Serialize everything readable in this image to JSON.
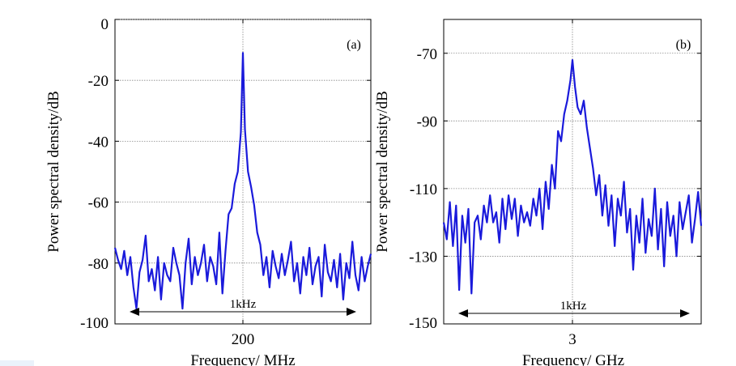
{
  "chart_data": [
    {
      "type": "line",
      "panel_label": "(a)",
      "xlabel": "Frequency/ MHz",
      "ylabel": "Power spectral density/dB",
      "xtick_labels": [
        "200"
      ],
      "ylim": [
        -100,
        0
      ],
      "yticks": [
        0,
        -20,
        -40,
        -60,
        -80,
        -100
      ],
      "grid": true,
      "span_annotation": "1kHz",
      "color": "#1a1adb",
      "series": [
        {
          "x": [
            0.0,
            0.012,
            0.024,
            0.036,
            0.048,
            0.06,
            0.072,
            0.084,
            0.096,
            0.108,
            0.12,
            0.132,
            0.144,
            0.156,
            0.168,
            0.18,
            0.192,
            0.204,
            0.216,
            0.228,
            0.24,
            0.252,
            0.264,
            0.276,
            0.288,
            0.3,
            0.312,
            0.324,
            0.336,
            0.348,
            0.36,
            0.372,
            0.384,
            0.396,
            0.408,
            0.42,
            0.432,
            0.444,
            0.456,
            0.468,
            0.48,
            0.492,
            0.5,
            0.508,
            0.52,
            0.532,
            0.544,
            0.556,
            0.568,
            0.58,
            0.592,
            0.604,
            0.616,
            0.628,
            0.64,
            0.652,
            0.664,
            0.676,
            0.688,
            0.7,
            0.712,
            0.724,
            0.736,
            0.748,
            0.76,
            0.772,
            0.784,
            0.796,
            0.808,
            0.82,
            0.832,
            0.844,
            0.856,
            0.868,
            0.88,
            0.892,
            0.904,
            0.916,
            0.928,
            0.94,
            0.952,
            0.964,
            0.976,
            0.988,
            1.0
          ],
          "y": [
            -75,
            -79,
            -82,
            -76,
            -84,
            -78,
            -88,
            -95,
            -83,
            -79,
            -71,
            -86,
            -82,
            -89,
            -78,
            -92,
            -80,
            -84,
            -86,
            -75,
            -80,
            -84,
            -95,
            -80,
            -72,
            -87,
            -78,
            -84,
            -80,
            -74,
            -86,
            -78,
            -81,
            -87,
            -70,
            -90,
            -76,
            -64,
            -62,
            -54,
            -50,
            -37,
            -11,
            -36,
            -50,
            -55,
            -61,
            -70,
            -74,
            -84,
            -78,
            -88,
            -76,
            -81,
            -85,
            -77,
            -84,
            -79,
            -73,
            -86,
            -80,
            -90,
            -78,
            -84,
            -75,
            -87,
            -81,
            -78,
            -91,
            -74,
            -83,
            -86,
            -79,
            -88,
            -77,
            -92,
            -80,
            -85,
            -73,
            -84,
            -89,
            -78,
            -86,
            -81,
            -77
          ],
          "peak": {
            "x": 0.5,
            "y": -11
          }
        }
      ]
    },
    {
      "type": "line",
      "panel_label": "(b)",
      "xlabel": "Frequency/ GHz",
      "ylabel": "Power spectral density/dB",
      "xtick_labels": [
        "3"
      ],
      "ylim": [
        -150,
        -60
      ],
      "yticks": [
        -70,
        -90,
        -110,
        -130,
        -150
      ],
      "grid": true,
      "span_annotation": "1kHz",
      "color": "#1a1adb",
      "series": [
        {
          "x": [
            0.0,
            0.012,
            0.024,
            0.036,
            0.048,
            0.06,
            0.072,
            0.084,
            0.096,
            0.108,
            0.12,
            0.132,
            0.144,
            0.156,
            0.168,
            0.18,
            0.192,
            0.204,
            0.216,
            0.228,
            0.24,
            0.252,
            0.264,
            0.276,
            0.288,
            0.3,
            0.312,
            0.324,
            0.336,
            0.348,
            0.36,
            0.372,
            0.384,
            0.396,
            0.408,
            0.42,
            0.432,
            0.444,
            0.456,
            0.468,
            0.48,
            0.492,
            0.5,
            0.51,
            0.52,
            0.532,
            0.544,
            0.556,
            0.568,
            0.58,
            0.592,
            0.604,
            0.616,
            0.628,
            0.64,
            0.652,
            0.664,
            0.676,
            0.688,
            0.7,
            0.712,
            0.724,
            0.736,
            0.748,
            0.76,
            0.772,
            0.784,
            0.796,
            0.808,
            0.82,
            0.832,
            0.844,
            0.856,
            0.868,
            0.88,
            0.892,
            0.904,
            0.916,
            0.928,
            0.94,
            0.952,
            0.964,
            0.976,
            0.988,
            1.0
          ],
          "y": [
            -120,
            -125,
            -114,
            -127,
            -115,
            -140,
            -118,
            -126,
            -116,
            -141,
            -120,
            -118,
            -125,
            -115,
            -120,
            -112,
            -120,
            -117,
            -126,
            -113,
            -122,
            -112,
            -119,
            -113,
            -124,
            -115,
            -120,
            -117,
            -121,
            -113,
            -118,
            -110,
            -122,
            -108,
            -116,
            -103,
            -110,
            -93,
            -96,
            -88,
            -84,
            -78,
            -72,
            -80,
            -86,
            -88,
            -84,
            -92,
            -98,
            -104,
            -112,
            -106,
            -118,
            -109,
            -121,
            -112,
            -127,
            -113,
            -118,
            -108,
            -123,
            -116,
            -134,
            -118,
            -126,
            -113,
            -129,
            -119,
            -124,
            -110,
            -128,
            -116,
            -133,
            -114,
            -124,
            -118,
            -130,
            -114,
            -122,
            -117,
            -112,
            -126,
            -119,
            -111,
            -121
          ],
          "peak": {
            "x": 0.5,
            "y": -72
          }
        }
      ]
    }
  ]
}
